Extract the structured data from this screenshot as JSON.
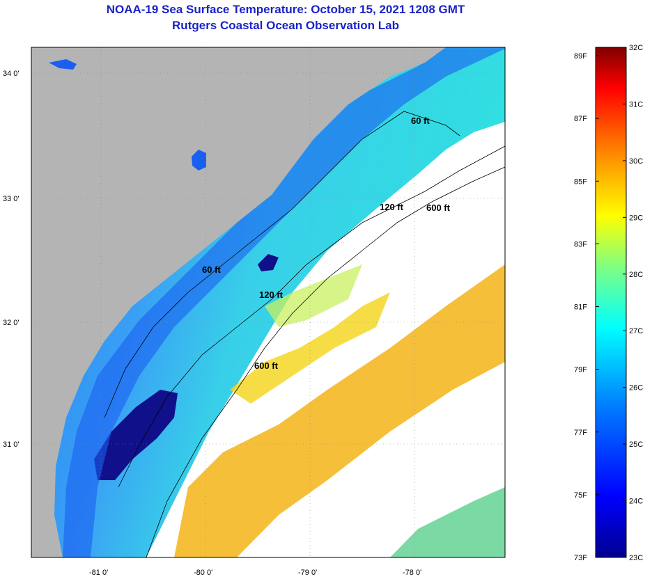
{
  "title": {
    "line1": "NOAA-19 Sea Surface Temperature:  October 15, 2021 1208 GMT",
    "line2": "Rutgers Coastal Ocean Observation Lab"
  },
  "map": {
    "lat_ticks": [
      "34 0'",
      "33 0'",
      "32 0'",
      "31 0'"
    ],
    "lon_ticks": [
      "-81 0'",
      "-80 0'",
      "-79 0'",
      "-78 0'"
    ],
    "contours": {
      "c60": "60 ft",
      "c120": "120 ft",
      "c600": "600 ft"
    }
  },
  "colorbar": {
    "fahrenheit_ticks": [
      "89F",
      "87F",
      "85F",
      "83F",
      "81F",
      "79F",
      "77F",
      "75F",
      "73F"
    ],
    "celsius_ticks": [
      "32C",
      "31C",
      "30C",
      "29C",
      "28C",
      "27C",
      "26C",
      "25C",
      "24C",
      "23C"
    ],
    "colors": [
      "#00008f",
      "#0000ff",
      "#0080ff",
      "#00ffff",
      "#80ff80",
      "#ffff00",
      "#ff8000",
      "#ff0000",
      "#800000"
    ]
  },
  "colors": {
    "land": "#b4b4b4",
    "cloud": "#ffffff",
    "title": "#1a22c8"
  }
}
